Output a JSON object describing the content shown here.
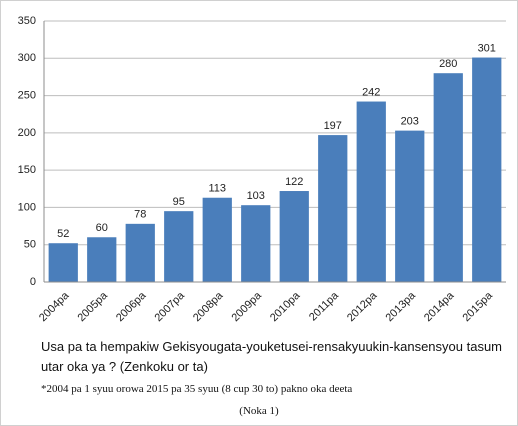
{
  "chart_data": {
    "type": "bar",
    "categories": [
      "2004pa",
      "2005pa",
      "2006pa",
      "2007pa",
      "2008pa",
      "2009pa",
      "2010pa",
      "2011pa",
      "2012pa",
      "2013pa",
      "2014pa",
      "2015pa"
    ],
    "values": [
      52,
      60,
      78,
      95,
      113,
      103,
      122,
      197,
      242,
      203,
      280,
      301
    ],
    "color": "#4a7ebb",
    "ylim": [
      0,
      350
    ],
    "yticks": [
      0,
      50,
      100,
      150,
      200,
      250,
      300,
      350
    ],
    "grid": true,
    "caption": "Usa pa ta hempakiw Gekisyougata-youketusei-rensakyuukin-kansensyou tasum utar oka ya ? (Zenkoku or ta)",
    "note": "*2004 pa 1 syuu orowa 2015 pa 35 syuu (8 cup 30 to) pakno oka deeta",
    "source": "(Noka 1)"
  }
}
